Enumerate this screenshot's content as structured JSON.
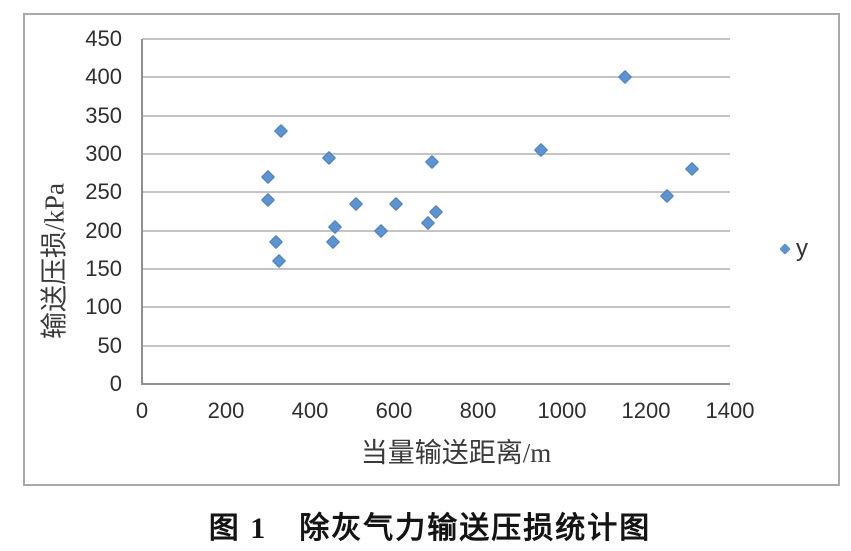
{
  "caption": "图 1　除灰气力输送压损统计图",
  "colors": {
    "marker": "#5d93d0",
    "marker_edge": "#4e82bd",
    "gridline": "#c4c4c4",
    "axis_line": "#8f8f8f",
    "frame_border": "#a8a8a8",
    "background": "#ffffff"
  },
  "chart_data": {
    "type": "scatter",
    "title": "图 1　除灰气力输送压损统计图",
    "xlabel": "当量输送距离/m",
    "ylabel": "输送压损/kPa",
    "xlim": [
      0,
      1400
    ],
    "ylim": [
      0,
      450
    ],
    "x_ticks": [
      0,
      200,
      400,
      600,
      800,
      1000,
      1200,
      1400
    ],
    "y_ticks": [
      0,
      50,
      100,
      150,
      200,
      250,
      300,
      350,
      400,
      450
    ],
    "grid": "horizontal",
    "legend_position": "right",
    "marker": "diamond",
    "series": [
      {
        "name": "y",
        "points": [
          [
            300,
            270
          ],
          [
            300,
            240
          ],
          [
            320,
            185
          ],
          [
            325,
            160
          ],
          [
            330,
            330
          ],
          [
            445,
            295
          ],
          [
            455,
            185
          ],
          [
            460,
            205
          ],
          [
            510,
            235
          ],
          [
            570,
            200
          ],
          [
            605,
            235
          ],
          [
            680,
            210
          ],
          [
            690,
            290
          ],
          [
            700,
            225
          ],
          [
            950,
            305
          ],
          [
            1150,
            400
          ],
          [
            1250,
            245
          ],
          [
            1310,
            280
          ]
        ]
      }
    ]
  }
}
